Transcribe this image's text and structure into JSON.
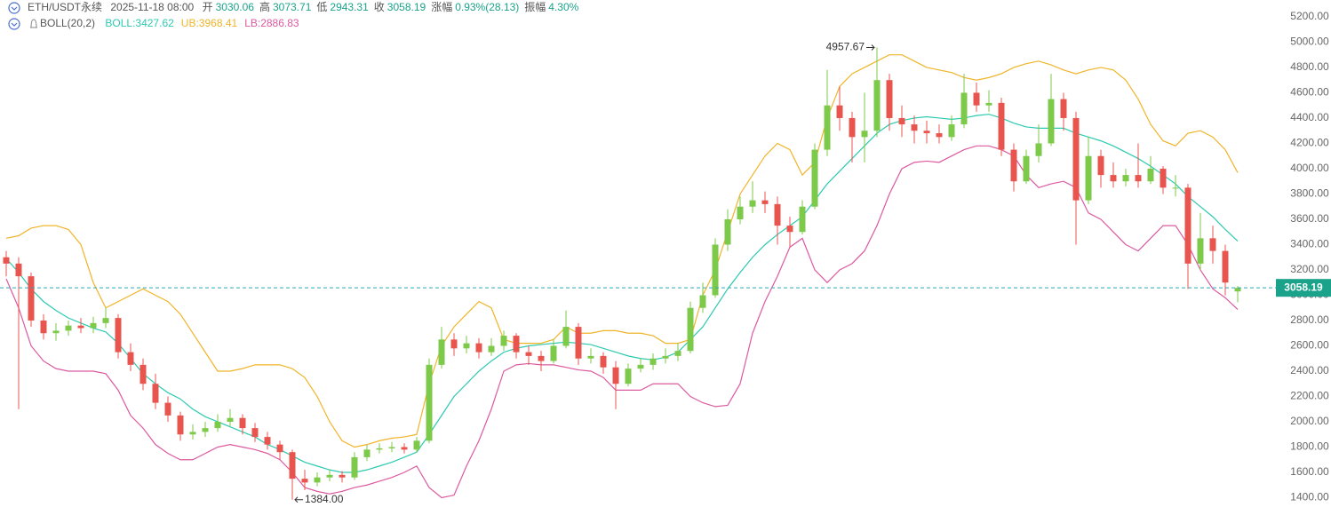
{
  "chart_data": {
    "type": "candlestick",
    "title": "ETH/USDT永续",
    "subtitle": "2025-11-18 08:00",
    "info": [
      {
        "label": "开",
        "value": "3030.06"
      },
      {
        "label": "高",
        "value": "3073.71"
      },
      {
        "label": "低",
        "value": "2943.31"
      },
      {
        "label": "收",
        "value": "3058.19"
      },
      {
        "label": "涨幅",
        "value": "0.93%(28.13)"
      },
      {
        "label": "振幅",
        "value": "4.30%"
      }
    ],
    "indicator": "BOLL(20,2)",
    "up_color": "#7dc94a",
    "down_color": "#e8544e",
    "ylim": [
      1200,
      5333
    ],
    "yticks": [
      {
        "value": 1400,
        "label": "1400.00"
      },
      {
        "value": 1600,
        "label": "1600.00"
      },
      {
        "value": 1800,
        "label": "1800.00"
      },
      {
        "value": 2000,
        "label": "2000.00"
      },
      {
        "value": 2200,
        "label": "2200.00"
      },
      {
        "value": 2400,
        "label": "2400.00"
      },
      {
        "value": 2600,
        "label": "2600.00"
      },
      {
        "value": 2800,
        "label": "2800.00"
      },
      {
        "value": 3000,
        "label": "3000.00"
      },
      {
        "value": 3200,
        "label": "3200.00"
      },
      {
        "value": 3400,
        "label": "3400.00"
      },
      {
        "value": 3600,
        "label": "3600.00"
      },
      {
        "value": 3800,
        "label": "3800.00"
      },
      {
        "value": 4000,
        "label": "4000.00"
      },
      {
        "value": 4200,
        "label": "4200.00"
      },
      {
        "value": 4400,
        "label": "4400.00"
      },
      {
        "value": 4600,
        "label": "4600.00"
      },
      {
        "value": 4800,
        "label": "4800.00"
      },
      {
        "value": 5000,
        "label": "5000.00"
      },
      {
        "value": 5200,
        "label": "5200.00"
      }
    ],
    "last_price": 3058.19,
    "max_label": 4957.67,
    "min_label": {
      "value": 1384,
      "label": "1384.00"
    },
    "candles": [
      [
        3300,
        3350,
        3150,
        3250
      ],
      [
        3250,
        3300,
        2100,
        3150
      ],
      [
        3150,
        3180,
        2750,
        2800
      ],
      [
        2800,
        2850,
        2650,
        2700
      ],
      [
        2700,
        2780,
        2640,
        2720
      ],
      [
        2720,
        2800,
        2680,
        2760
      ],
      [
        2760,
        2820,
        2700,
        2740
      ],
      [
        2740,
        2830,
        2700,
        2780
      ],
      [
        2780,
        2900,
        2740,
        2820
      ],
      [
        2820,
        2850,
        2500,
        2550
      ],
      [
        2550,
        2620,
        2400,
        2450
      ],
      [
        2450,
        2500,
        2250,
        2300
      ],
      [
        2300,
        2380,
        2100,
        2150
      ],
      [
        2150,
        2200,
        2000,
        2050
      ],
      [
        2050,
        2080,
        1850,
        1900
      ],
      [
        1900,
        1980,
        1860,
        1920
      ],
      [
        1920,
        2000,
        1880,
        1950
      ],
      [
        1950,
        2060,
        1920,
        2000
      ],
      [
        2000,
        2100,
        1960,
        2030
      ],
      [
        2030,
        2060,
        1900,
        1950
      ],
      [
        1950,
        1990,
        1840,
        1880
      ],
      [
        1880,
        1920,
        1780,
        1820
      ],
      [
        1820,
        1850,
        1700,
        1760
      ],
      [
        1760,
        1780,
        1384,
        1550
      ],
      [
        1550,
        1620,
        1460,
        1520
      ],
      [
        1520,
        1600,
        1490,
        1560
      ],
      [
        1560,
        1620,
        1530,
        1580
      ],
      [
        1580,
        1610,
        1520,
        1560
      ],
      [
        1560,
        1760,
        1540,
        1720
      ],
      [
        1720,
        1820,
        1690,
        1780
      ],
      [
        1780,
        1830,
        1750,
        1790
      ],
      [
        1790,
        1840,
        1760,
        1800
      ],
      [
        1800,
        1830,
        1750,
        1780
      ],
      [
        1780,
        1880,
        1760,
        1850
      ],
      [
        1850,
        2500,
        1830,
        2450
      ],
      [
        2450,
        2750,
        2420,
        2650
      ],
      [
        2650,
        2700,
        2520,
        2580
      ],
      [
        2580,
        2680,
        2540,
        2620
      ],
      [
        2620,
        2660,
        2500,
        2550
      ],
      [
        2550,
        2660,
        2520,
        2600
      ],
      [
        2600,
        2720,
        2560,
        2680
      ],
      [
        2680,
        2700,
        2500,
        2550
      ],
      [
        2550,
        2600,
        2450,
        2520
      ],
      [
        2520,
        2560,
        2400,
        2480
      ],
      [
        2480,
        2650,
        2460,
        2600
      ],
      [
        2600,
        2880,
        2580,
        2750
      ],
      [
        2750,
        2780,
        2450,
        2500
      ],
      [
        2500,
        2580,
        2460,
        2520
      ],
      [
        2520,
        2550,
        2380,
        2430
      ],
      [
        2430,
        2480,
        2100,
        2300
      ],
      [
        2300,
        2460,
        2280,
        2420
      ],
      [
        2420,
        2500,
        2390,
        2450
      ],
      [
        2450,
        2540,
        2410,
        2500
      ],
      [
        2500,
        2580,
        2460,
        2520
      ],
      [
        2520,
        2620,
        2480,
        2560
      ],
      [
        2560,
        2950,
        2540,
        2900
      ],
      [
        2900,
        3100,
        2860,
        3000
      ],
      [
        3000,
        3450,
        2980,
        3400
      ],
      [
        3400,
        3680,
        3350,
        3600
      ],
      [
        3600,
        3780,
        3560,
        3700
      ],
      [
        3700,
        3900,
        3650,
        3750
      ],
      [
        3750,
        3820,
        3650,
        3720
      ],
      [
        3720,
        3780,
        3400,
        3550
      ],
      [
        3550,
        3620,
        3380,
        3500
      ],
      [
        3500,
        3750,
        3480,
        3700
      ],
      [
        3700,
        4200,
        3680,
        4150
      ],
      [
        4150,
        4780,
        4100,
        4500
      ],
      [
        4500,
        4650,
        4300,
        4400
      ],
      [
        4400,
        4450,
        4050,
        4250
      ],
      [
        4250,
        4600,
        4050,
        4300
      ],
      [
        4300,
        4957.67,
        4250,
        4700
      ],
      [
        4700,
        4750,
        4300,
        4400
      ],
      [
        4400,
        4500,
        4250,
        4350
      ],
      [
        4350,
        4420,
        4200,
        4300
      ],
      [
        4300,
        4380,
        4200,
        4280
      ],
      [
        4280,
        4350,
        4200,
        4250
      ],
      [
        4250,
        4420,
        4220,
        4350
      ],
      [
        4350,
        4750,
        4320,
        4600
      ],
      [
        4600,
        4680,
        4450,
        4500
      ],
      [
        4500,
        4620,
        4450,
        4520
      ],
      [
        4520,
        4560,
        4100,
        4150
      ],
      [
        4150,
        4200,
        3820,
        3900
      ],
      [
        3900,
        4150,
        3880,
        4100
      ],
      [
        4100,
        4350,
        4050,
        4200
      ],
      [
        4200,
        4750,
        4180,
        4550
      ],
      [
        4550,
        4600,
        4300,
        4400
      ],
      [
        4400,
        4450,
        3400,
        3750
      ],
      [
        3750,
        4250,
        3720,
        4100
      ],
      [
        4100,
        4150,
        3850,
        3950
      ],
      [
        3950,
        4050,
        3850,
        3900
      ],
      [
        3900,
        4000,
        3860,
        3950
      ],
      [
        3950,
        4200,
        3850,
        3900
      ],
      [
        3900,
        4100,
        3880,
        4000
      ],
      [
        4000,
        4020,
        3800,
        3850
      ],
      [
        3850,
        3950,
        3780,
        3850
      ],
      [
        3850,
        3880,
        3050,
        3250
      ],
      [
        3250,
        3650,
        3200,
        3450
      ],
      [
        3450,
        3550,
        3250,
        3350
      ],
      [
        3350,
        3400,
        3000,
        3100
      ],
      [
        3030.06,
        3073.71,
        2943.31,
        3058.19
      ]
    ],
    "series": [
      {
        "name": "BOLL:3427.62",
        "color": "#2cc9b0",
        "values": [
          3290,
          3180,
          3050,
          2950,
          2880,
          2820,
          2780,
          2740,
          2710,
          2620,
          2500,
          2380,
          2300,
          2230,
          2180,
          2100,
          2040,
          2000,
          1960,
          1920,
          1880,
          1820,
          1780,
          1730,
          1680,
          1650,
          1620,
          1600,
          1600,
          1620,
          1650,
          1680,
          1720,
          1760,
          1900,
          2050,
          2200,
          2300,
          2400,
          2480,
          2550,
          2580,
          2600,
          2610,
          2620,
          2630,
          2620,
          2610,
          2580,
          2550,
          2520,
          2500,
          2490,
          2510,
          2550,
          2650,
          2750,
          2900,
          3050,
          3180,
          3300,
          3400,
          3480,
          3550,
          3620,
          3750,
          3880,
          3980,
          4080,
          4180,
          4280,
          4350,
          4380,
          4400,
          4410,
          4400,
          4390,
          4400,
          4420,
          4430,
          4400,
          4360,
          4330,
          4320,
          4320,
          4320,
          4280,
          4250,
          4220,
          4180,
          4130,
          4080,
          4020,
          3950,
          3880,
          3780,
          3700,
          3620,
          3520,
          3427.62
        ]
      },
      {
        "name": "UB:3968.41",
        "color": "#f0b429",
        "values": [
          3450,
          3470,
          3530,
          3550,
          3550,
          3520,
          3400,
          3100,
          2900,
          2950,
          3000,
          3050,
          3000,
          2950,
          2850,
          2700,
          2550,
          2400,
          2400,
          2420,
          2450,
          2450,
          2450,
          2420,
          2350,
          2200,
          2000,
          1850,
          1800,
          1820,
          1850,
          1870,
          1880,
          1900,
          2300,
          2600,
          2750,
          2850,
          2950,
          2900,
          2650,
          2620,
          2620,
          2620,
          2650,
          2750,
          2700,
          2700,
          2720,
          2720,
          2700,
          2700,
          2680,
          2620,
          2620,
          2650,
          3000,
          3200,
          3500,
          3800,
          3950,
          4100,
          4200,
          4150,
          3950,
          4050,
          4400,
          4650,
          4750,
          4800,
          4850,
          4900,
          4900,
          4850,
          4800,
          4780,
          4760,
          4720,
          4700,
          4720,
          4750,
          4800,
          4830,
          4850,
          4820,
          4780,
          4750,
          4780,
          4800,
          4780,
          4700,
          4550,
          4350,
          4220,
          4180,
          4280,
          4300,
          4250,
          4150,
          3968.41
        ]
      },
      {
        "name": "LB:2886.83",
        "color": "#dc5aa0",
        "values": [
          3130,
          2900,
          2600,
          2480,
          2420,
          2400,
          2400,
          2400,
          2380,
          2250,
          2050,
          1950,
          1820,
          1750,
          1700,
          1700,
          1750,
          1800,
          1820,
          1800,
          1780,
          1750,
          1700,
          1600,
          1480,
          1450,
          1430,
          1450,
          1480,
          1500,
          1530,
          1560,
          1600,
          1650,
          1480,
          1400,
          1420,
          1650,
          1850,
          2100,
          2400,
          2450,
          2460,
          2450,
          2450,
          2430,
          2410,
          2400,
          2350,
          2250,
          2250,
          2250,
          2300,
          2300,
          2300,
          2200,
          2150,
          2120,
          2130,
          2300,
          2700,
          2950,
          3150,
          3380,
          3450,
          3200,
          3100,
          3200,
          3250,
          3350,
          3550,
          3800,
          4000,
          4050,
          4060,
          4050,
          4100,
          4150,
          4180,
          4180,
          4150,
          4100,
          3950,
          3850,
          3880,
          3900,
          3850,
          3650,
          3600,
          3500,
          3400,
          3350,
          3450,
          3550,
          3550,
          3400,
          3200,
          3050,
          2980,
          2886.83
        ]
      }
    ]
  }
}
